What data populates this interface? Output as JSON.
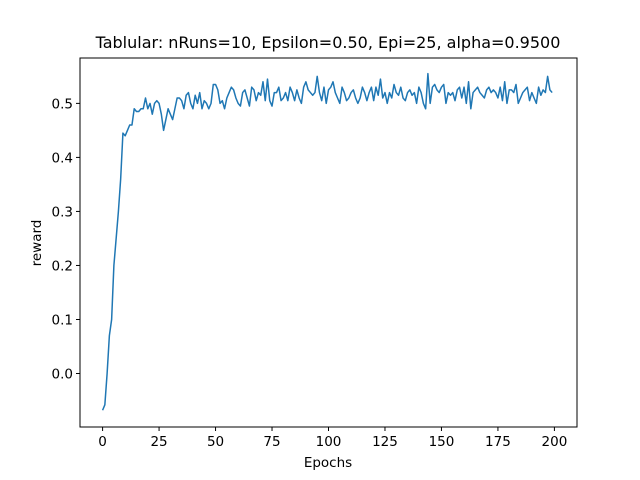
{
  "chart_data": {
    "type": "line",
    "title": "Tablular: nRuns=10, Epsilon=0.50, Epi=25, alpha=0.9500",
    "x_label": "Epochs",
    "y_label": "reward",
    "x": [
      0,
      1,
      2,
      3,
      4,
      5,
      6,
      7,
      8,
      9,
      10,
      11,
      12,
      13,
      14,
      15,
      16,
      17,
      18,
      19,
      20,
      21,
      22,
      23,
      24,
      25,
      26,
      27,
      28,
      29,
      30,
      31,
      32,
      33,
      34,
      35,
      36,
      37,
      38,
      39,
      40,
      41,
      42,
      43,
      44,
      45,
      46,
      47,
      48,
      49,
      50,
      51,
      52,
      53,
      54,
      55,
      56,
      57,
      58,
      59,
      60,
      61,
      62,
      63,
      64,
      65,
      66,
      67,
      68,
      69,
      70,
      71,
      72,
      73,
      74,
      75,
      76,
      77,
      78,
      79,
      80,
      81,
      82,
      83,
      84,
      85,
      86,
      87,
      88,
      89,
      90,
      91,
      92,
      93,
      94,
      95,
      96,
      97,
      98,
      99,
      100,
      101,
      102,
      103,
      104,
      105,
      106,
      107,
      108,
      109,
      110,
      111,
      112,
      113,
      114,
      115,
      116,
      117,
      118,
      119,
      120,
      121,
      122,
      123,
      124,
      125,
      126,
      127,
      128,
      129,
      130,
      131,
      132,
      133,
      134,
      135,
      136,
      137,
      138,
      139,
      140,
      141,
      142,
      143,
      144,
      145,
      146,
      147,
      148,
      149,
      150,
      151,
      152,
      153,
      154,
      155,
      156,
      157,
      158,
      159,
      160,
      161,
      162,
      163,
      164,
      165,
      166,
      167,
      168,
      169,
      170,
      171,
      172,
      173,
      174,
      175,
      176,
      177,
      178,
      179,
      180,
      181,
      182,
      183,
      184,
      185,
      186,
      187,
      188,
      189,
      190,
      191,
      192,
      193,
      194,
      195,
      196,
      197,
      198,
      199
    ],
    "series": [
      {
        "color": "#1f77b4",
        "values": [
          -0.068,
          -0.058,
          0.0,
          0.07,
          0.1,
          0.2,
          0.25,
          0.3,
          0.36,
          0.445,
          0.44,
          0.45,
          0.46,
          0.46,
          0.49,
          0.485,
          0.485,
          0.49,
          0.49,
          0.51,
          0.49,
          0.5,
          0.48,
          0.5,
          0.505,
          0.5,
          0.48,
          0.45,
          0.47,
          0.49,
          0.48,
          0.47,
          0.49,
          0.51,
          0.51,
          0.505,
          0.49,
          0.515,
          0.52,
          0.5,
          0.49,
          0.515,
          0.5,
          0.52,
          0.49,
          0.505,
          0.5,
          0.49,
          0.5,
          0.535,
          0.535,
          0.525,
          0.5,
          0.505,
          0.49,
          0.51,
          0.52,
          0.53,
          0.525,
          0.51,
          0.5,
          0.495,
          0.52,
          0.525,
          0.51,
          0.495,
          0.53,
          0.525,
          0.505,
          0.52,
          0.515,
          0.54,
          0.505,
          0.545,
          0.505,
          0.495,
          0.52,
          0.52,
          0.53,
          0.505,
          0.51,
          0.52,
          0.505,
          0.53,
          0.52,
          0.505,
          0.525,
          0.51,
          0.5,
          0.53,
          0.54,
          0.525,
          0.52,
          0.515,
          0.52,
          0.55,
          0.52,
          0.505,
          0.53,
          0.5,
          0.525,
          0.53,
          0.54,
          0.52,
          0.51,
          0.5,
          0.53,
          0.52,
          0.505,
          0.51,
          0.52,
          0.525,
          0.51,
          0.5,
          0.51,
          0.53,
          0.52,
          0.505,
          0.52,
          0.53,
          0.505,
          0.53,
          0.515,
          0.545,
          0.51,
          0.52,
          0.5,
          0.52,
          0.51,
          0.535,
          0.52,
          0.515,
          0.53,
          0.51,
          0.505,
          0.52,
          0.525,
          0.515,
          0.52,
          0.5,
          0.53,
          0.52,
          0.5,
          0.49,
          0.555,
          0.5,
          0.53,
          0.535,
          0.525,
          0.52,
          0.53,
          0.535,
          0.5,
          0.52,
          0.515,
          0.52,
          0.505,
          0.525,
          0.53,
          0.51,
          0.53,
          0.5,
          0.54,
          0.49,
          0.52,
          0.525,
          0.53,
          0.52,
          0.515,
          0.51,
          0.525,
          0.53,
          0.52,
          0.525,
          0.52,
          0.51,
          0.53,
          0.505,
          0.54,
          0.5,
          0.525,
          0.525,
          0.52,
          0.535,
          0.5,
          0.51,
          0.52,
          0.525,
          0.53,
          0.505,
          0.52,
          0.51,
          0.5,
          0.53,
          0.515,
          0.525,
          0.52,
          0.55,
          0.525,
          0.52
        ]
      }
    ],
    "xlim": [
      -10,
      210
    ],
    "xticks": [
      0,
      25,
      50,
      75,
      100,
      125,
      150,
      175,
      200
    ],
    "ylim": [
      -0.099,
      0.584
    ],
    "yticks": [
      {
        "value": 0,
        "label": "0.0"
      },
      0.1,
      0.2,
      0.3,
      0.4,
      0.5
    ],
    "grid": false
  }
}
